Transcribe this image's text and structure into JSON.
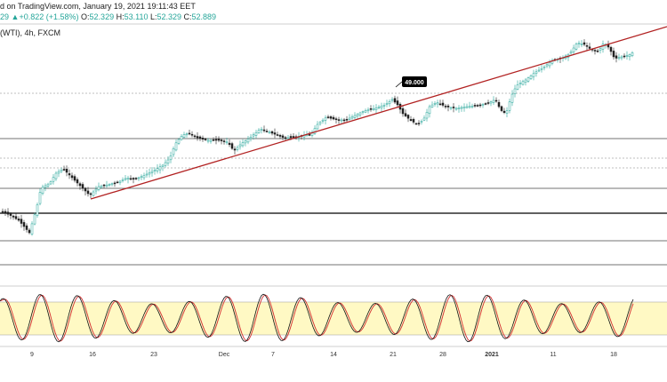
{
  "header": {
    "line1": "d on TradingView.com, January 19, 2021 19:11:43 EET",
    "prefix": "29",
    "arrow": "▲",
    "change": "+0.822 (+1.58%)",
    "open_label": "O:",
    "open_value": "52.329",
    "high_label": "H:",
    "high_value": "53.110",
    "low_label": "L:",
    "low_value": "52.329",
    "close_label": "C:",
    "close_value": "52.889",
    "symbol": "(WTI), 4h, FXCM"
  },
  "colors": {
    "up": "#26a69a",
    "down": "#222222",
    "trendline": "#b22222",
    "stoch_k": "#111111",
    "stoch_d": "#d32f2f",
    "stoch_band": "#fff9c4"
  },
  "chart_data": [
    {
      "type": "candlestick",
      "annotation": "49.000",
      "x_tick_labels": [
        "9",
        "16",
        "23",
        "Dec",
        "7",
        "14",
        "21",
        "28",
        "2021",
        "11",
        "18"
      ]
    },
    {
      "type": "line",
      "name": "stochastic",
      "ylim": [
        0,
        100
      ],
      "band": [
        20,
        80
      ]
    }
  ]
}
